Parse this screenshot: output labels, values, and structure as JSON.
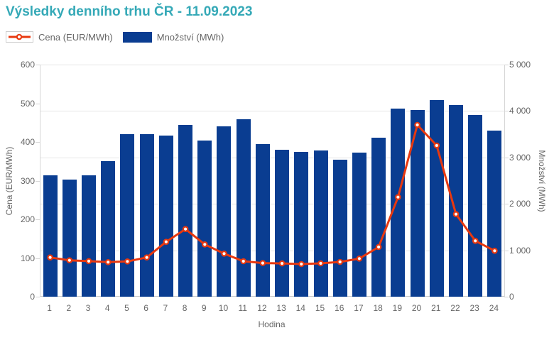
{
  "title": "Výsledky denního trhu ČR - 11.09.2023",
  "legend": {
    "price_label": "Cena (EUR/MWh)",
    "quantity_label": "Množství (MWh)"
  },
  "colors": {
    "title": "#35a9b7",
    "bar": "#0a3d91",
    "line": "#e8380f",
    "marker_fill": "#ffffff",
    "grid": "#e6e6e6",
    "axis_text": "#666666"
  },
  "chart_data": {
    "type": "combo (bar + line)",
    "x_label": "Hodina",
    "categories": [
      1,
      2,
      3,
      4,
      5,
      6,
      7,
      8,
      9,
      10,
      11,
      12,
      13,
      14,
      15,
      16,
      17,
      18,
      19,
      20,
      21,
      22,
      23,
      24
    ],
    "series": [
      {
        "name": "Cena (EUR/MWh)",
        "type": "line",
        "axis": "left",
        "values": [
          101.5,
          94.1,
          92.0,
          89.3,
          91.2,
          101.5,
          141.9,
          174.9,
          135.2,
          111.4,
          91.7,
          86.9,
          86.1,
          84.4,
          86.2,
          89.9,
          98.5,
          128.4,
          257.4,
          444.0,
          390.9,
          213.4,
          144.4,
          118.7
        ]
      },
      {
        "name": "Množství (MWh)",
        "type": "bar",
        "axis": "right",
        "values": [
          2619,
          2518,
          2619,
          2916,
          3497,
          3506,
          3475,
          3700,
          3369,
          3674,
          3818,
          3292,
          3170,
          3120,
          3155,
          2951,
          3104,
          3420,
          4047,
          4021,
          4240,
          4133,
          3909,
          3573
        ]
      }
    ],
    "left_axis": {
      "title": "Cena (EUR/MWh)",
      "min": 0,
      "max": 600,
      "ticks": [
        0,
        100,
        200,
        300,
        400,
        500,
        600
      ]
    },
    "right_axis": {
      "title": "Množství (MWh)",
      "min": 0,
      "max": 5000,
      "ticks": [
        0,
        1000,
        2000,
        3000,
        4000,
        5000
      ],
      "tick_format": "thousands separated by space"
    },
    "grid": "horizontal lines at right-axis ticks only",
    "legend_position": "top-left"
  }
}
